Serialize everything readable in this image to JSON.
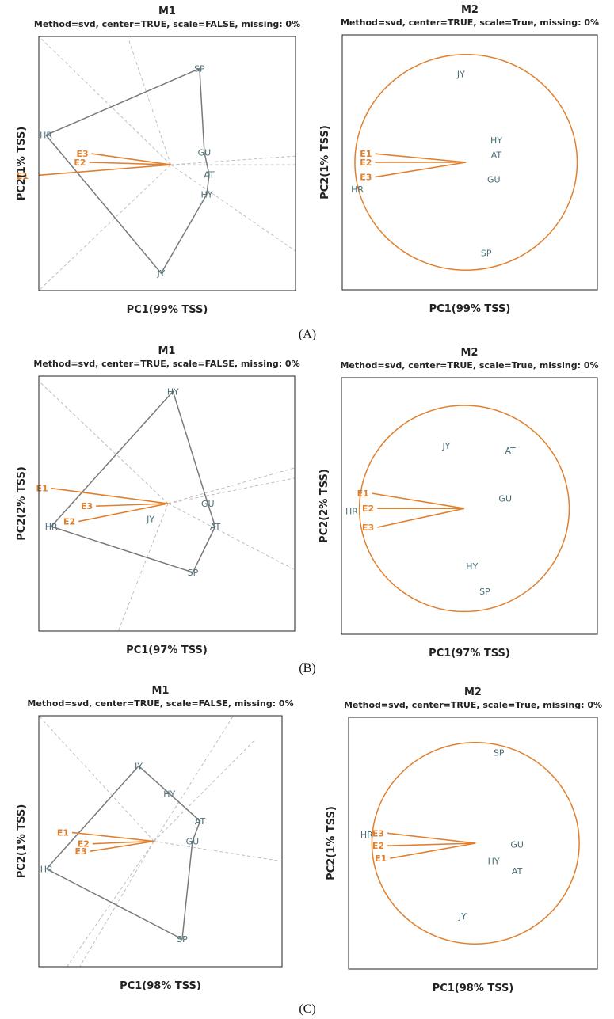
{
  "colors": {
    "env": "#e0802e",
    "genotype": "#4a6e78",
    "hull": "#7a7a7a",
    "sector": "#b8b8b8",
    "frame": "#222222"
  },
  "sections": [
    {
      "label": "(A)",
      "plots": [
        {
          "title": "M1",
          "subtitle": "Method=svd, center=TRUE, scale=FALSE, missing: 0%",
          "xlabel": "PC1(99% TSS)",
          "ylabel": "PC2(1% TSS)",
          "chart_data": {
            "type": "scatter",
            "kind": "which-won-where",
            "origin": [
              0,
              0
            ],
            "genotypes": [
              {
                "name": "SP",
                "x": 1.2,
                "y": 3.9
              },
              {
                "name": "HR",
                "x": -5.2,
                "y": 1.2
              },
              {
                "name": "GU",
                "x": 1.4,
                "y": 0.5
              },
              {
                "name": "AT",
                "x": 1.6,
                "y": -0.4
              },
              {
                "name": "HY",
                "x": 1.5,
                "y": -1.2
              },
              {
                "name": "JY",
                "x": -0.4,
                "y": -4.4
              }
            ],
            "hull": [
              "SP",
              "HR",
              "JY",
              "HY",
              "AT",
              "GU"
            ],
            "environments": [
              {
                "name": "E3",
                "x": -3.3,
                "y": 0.45
              },
              {
                "name": "E2",
                "x": -3.4,
                "y": 0.1
              },
              {
                "name": "E1",
                "x": -5.8,
                "y": -0.45
              }
            ],
            "sectors": [
              [
                -5.5,
                5.2
              ],
              [
                -1.8,
                5.2
              ],
              [
                5.2,
                0.35
              ],
              [
                5.2,
                -3.5
              ],
              [
                -5.5,
                -5.1
              ],
              [
                5.2,
                0.0
              ]
            ],
            "xlim": [
              -5.5,
              5.2
            ],
            "ylim": [
              -5.1,
              5.2
            ]
          }
        },
        {
          "title": "M2",
          "subtitle": "Method=svd, center=TRUE, scale=True, missing: 0%",
          "xlabel": "PC1(99% TSS)",
          "ylabel": "PC2(1% TSS)",
          "chart_data": {
            "type": "scatter",
            "kind": "circle",
            "origin": [
              0,
              0
            ],
            "circle_radius": 4.4,
            "genotypes": [
              {
                "name": "JY",
                "x": -0.2,
                "y": 3.6
              },
              {
                "name": "HY",
                "x": 1.2,
                "y": 0.9
              },
              {
                "name": "AT",
                "x": 1.2,
                "y": 0.3
              },
              {
                "name": "GU",
                "x": 1.1,
                "y": -0.7
              },
              {
                "name": "HR",
                "x": -4.3,
                "y": -1.1
              },
              {
                "name": "SP",
                "x": 0.8,
                "y": -3.7
              }
            ],
            "environments": [
              {
                "name": "E1",
                "x": -3.6,
                "y": 0.35
              },
              {
                "name": "E2",
                "x": -3.6,
                "y": 0.0
              },
              {
                "name": "E3",
                "x": -3.6,
                "y": -0.6
              }
            ],
            "xlim": [
              -4.9,
              5.2
            ],
            "ylim": [
              -5.2,
              5.2
            ]
          }
        }
      ]
    },
    {
      "label": "(B)",
      "plots": [
        {
          "title": "M1",
          "subtitle": "Method=svd, center=TRUE, scale=FALSE, missing: 0%",
          "xlabel": "PC1(97% TSS)",
          "ylabel": "PC2(2% TSS)",
          "chart_data": {
            "type": "scatter",
            "kind": "which-won-where",
            "origin": [
              0,
              0
            ],
            "genotypes": [
              {
                "name": "HY",
                "x": 0.2,
                "y": 4.4
              },
              {
                "name": "GU",
                "x": 1.6,
                "y": 0.0
              },
              {
                "name": "AT",
                "x": 1.9,
                "y": -0.9
              },
              {
                "name": "SP",
                "x": 1.0,
                "y": -2.7
              },
              {
                "name": "HR",
                "x": -4.7,
                "y": -0.9
              },
              {
                "name": "JY",
                "x": -0.7,
                "y": -0.6
              }
            ],
            "hull": [
              "HY",
              "GU",
              "AT",
              "SP",
              "HR"
            ],
            "environments": [
              {
                "name": "E1",
                "x": -4.7,
                "y": 0.6
              },
              {
                "name": "E3",
                "x": -2.9,
                "y": -0.1
              },
              {
                "name": "E2",
                "x": -3.6,
                "y": -0.7
              }
            ],
            "sectors": [
              [
                -5.2,
                4.8
              ],
              [
                5.1,
                -2.6
              ],
              [
                5.1,
                1.4
              ],
              [
                5.1,
                1.0
              ],
              [
                -2.0,
                -5.0
              ]
            ],
            "xlim": [
              -5.2,
              5.1
            ],
            "ylim": [
              -5.0,
              5.0
            ]
          }
        },
        {
          "title": "M2",
          "subtitle": "Method=svd, center=TRUE, scale=True, missing: 0%",
          "xlabel": "PC1(97% TSS)",
          "ylabel": "PC2(2% TSS)",
          "chart_data": {
            "type": "scatter",
            "kind": "circle",
            "origin": [
              0,
              0
            ],
            "circle_radius": 4.1,
            "genotypes": [
              {
                "name": "JY",
                "x": -0.7,
                "y": 2.5
              },
              {
                "name": "AT",
                "x": 1.8,
                "y": 2.3
              },
              {
                "name": "GU",
                "x": 1.6,
                "y": 0.4
              },
              {
                "name": "HR",
                "x": -4.4,
                "y": -0.1
              },
              {
                "name": "HY",
                "x": 0.3,
                "y": -2.3
              },
              {
                "name": "SP",
                "x": 0.8,
                "y": -3.3
              }
            ],
            "environments": [
              {
                "name": "E1",
                "x": -3.6,
                "y": 0.6
              },
              {
                "name": "E2",
                "x": -3.4,
                "y": 0.0
              },
              {
                "name": "E3",
                "x": -3.4,
                "y": -0.75
              }
            ],
            "xlim": [
              -4.8,
              5.2
            ],
            "ylim": [
              -5.0,
              5.2
            ]
          }
        }
      ]
    },
    {
      "label": "(C)",
      "plots": [
        {
          "title": "M1",
          "subtitle": "Method=svd, center=TRUE, scale=FALSE, missing: 0%",
          "xlabel": "PC1(98% TSS)",
          "ylabel": "PC2(1% TSS)",
          "chart_data": {
            "type": "scatter",
            "kind": "which-won-where",
            "origin": [
              0,
              0
            ],
            "genotypes": [
              {
                "name": "JY",
                "x": -0.6,
                "y": 3.0
              },
              {
                "name": "HY",
                "x": 0.6,
                "y": 1.9
              },
              {
                "name": "AT",
                "x": 1.8,
                "y": 0.8
              },
              {
                "name": "GU",
                "x": 1.5,
                "y": 0.0
              },
              {
                "name": "SP",
                "x": 1.1,
                "y": -3.9
              },
              {
                "name": "HR",
                "x": -4.2,
                "y": -1.1
              }
            ],
            "hull": [
              "JY",
              "HY",
              "AT",
              "GU",
              "SP",
              "HR"
            ],
            "environments": [
              {
                "name": "E1",
                "x": -3.2,
                "y": 0.35
              },
              {
                "name": "E2",
                "x": -2.4,
                "y": -0.1
              },
              {
                "name": "E3",
                "x": -2.5,
                "y": -0.4
              }
            ],
            "sectors": [
              [
                -4.5,
                5.0
              ],
              [
                3.1,
                5.0
              ],
              [
                3.9,
                4.0
              ],
              [
                5.0,
                -0.8
              ],
              [
                -2.9,
                -5.0
              ],
              [
                -3.4,
                -5.0
              ]
            ],
            "xlim": [
              -4.5,
              5.0
            ],
            "ylim": [
              -5.0,
              5.0
            ]
          }
        },
        {
          "title": "M2",
          "subtitle": "Method=svd, center=TRUE, scale=True, missing: 0%",
          "xlabel": "PC1(98% TSS)",
          "ylabel": "PC2(1% TSS)",
          "chart_data": {
            "type": "scatter",
            "kind": "circle",
            "origin": [
              0,
              0
            ],
            "circle_radius": 4.0,
            "genotypes": [
              {
                "name": "SP",
                "x": 0.9,
                "y": 3.6
              },
              {
                "name": "GU",
                "x": 1.6,
                "y": -0.05
              },
              {
                "name": "HR",
                "x": -4.2,
                "y": 0.35
              },
              {
                "name": "HY",
                "x": 0.7,
                "y": -0.7
              },
              {
                "name": "AT",
                "x": 1.6,
                "y": -1.1
              },
              {
                "name": "JY",
                "x": -0.5,
                "y": -2.9
              }
            ],
            "environments": [
              {
                "name": "E3",
                "x": -3.4,
                "y": 0.4
              },
              {
                "name": "E2",
                "x": -3.4,
                "y": -0.1
              },
              {
                "name": "E1",
                "x": -3.3,
                "y": -0.6
              }
            ],
            "xlim": [
              -4.9,
              4.7
            ],
            "ylim": [
              -5.0,
              5.0
            ]
          }
        }
      ]
    }
  ]
}
